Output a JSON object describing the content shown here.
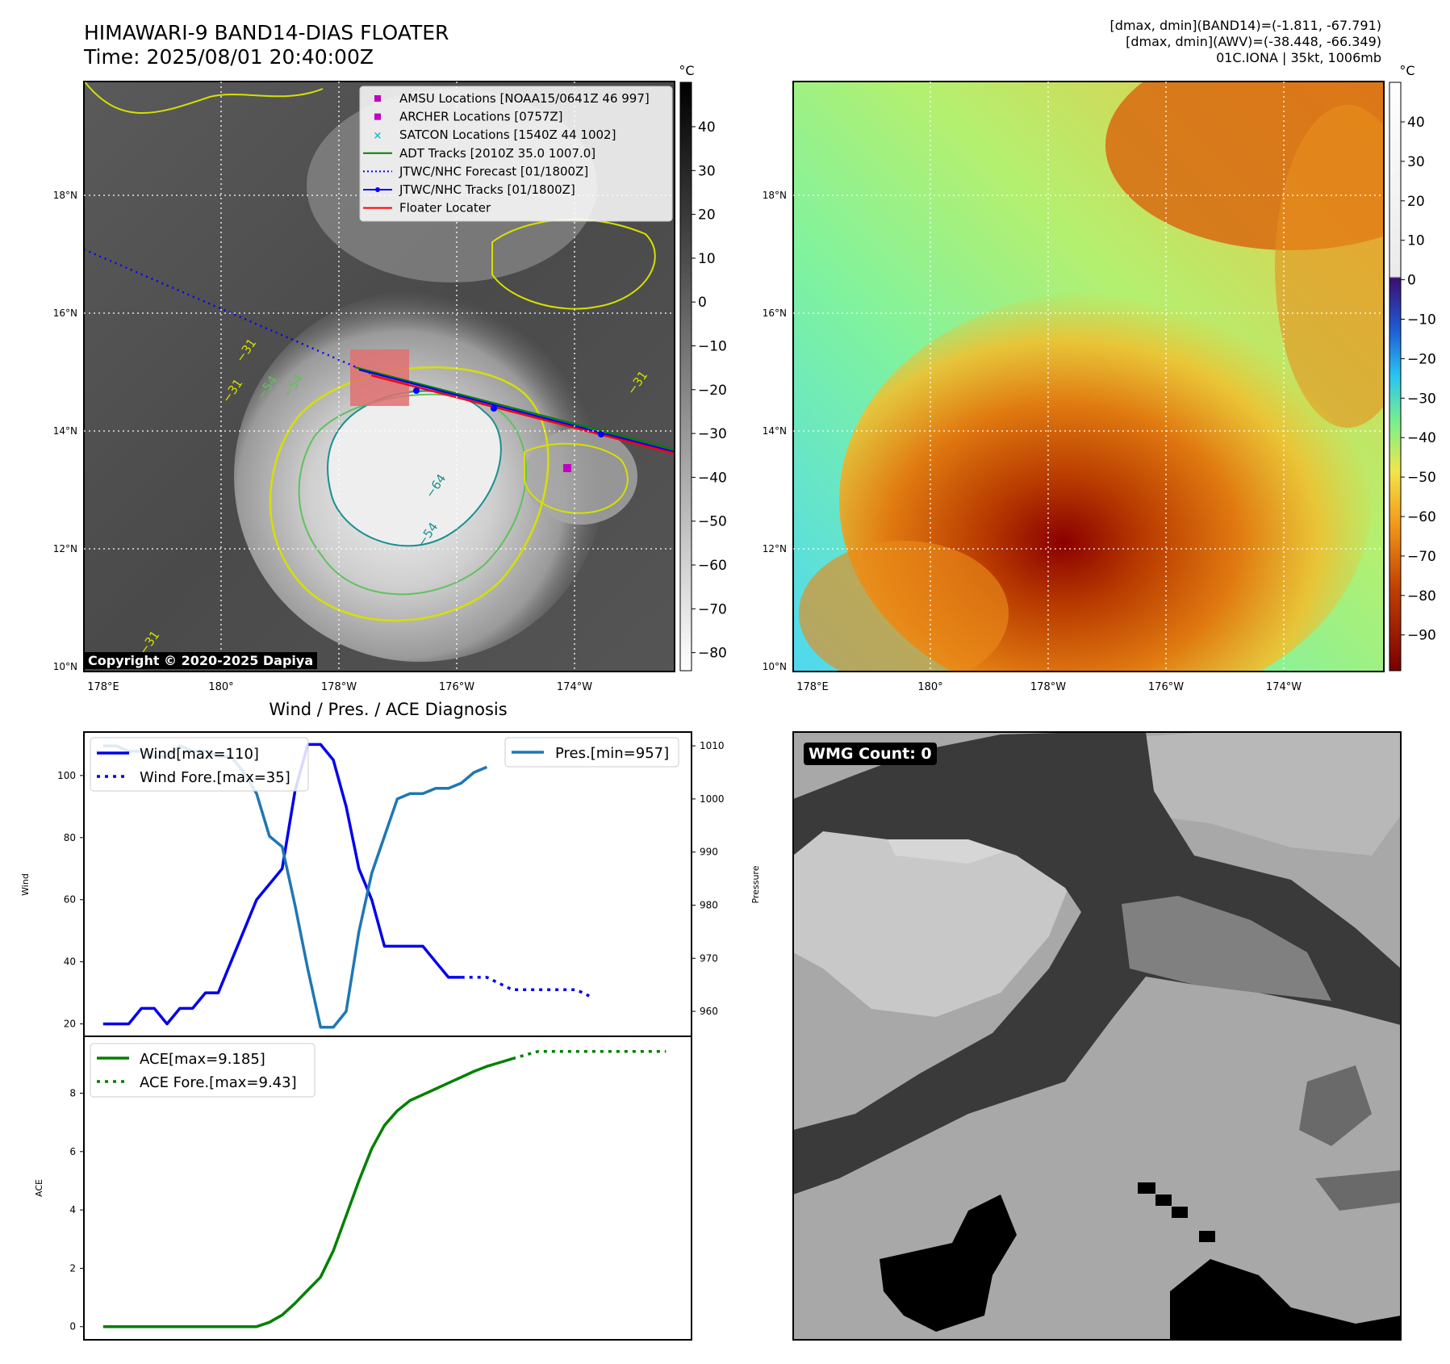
{
  "header": {
    "title_line1": "HIMAWARI-9 BAND14-DIAS FLOATER",
    "title_line2": "Time: 2025/08/01 20:40:00Z",
    "info_line1": "[dmax, dmin](BAND14)=(-1.811, -67.791)",
    "info_line2": "[dmax, dmin](AWV)=(-38.448, -66.349)",
    "info_line3": "01C.IONA | 35kt, 1006mb"
  },
  "map_axes": {
    "lat_ticks": [
      "18°N",
      "16°N",
      "14°N",
      "12°N",
      "10°N"
    ],
    "lon_ticks": [
      "178°E",
      "180°",
      "178°W",
      "176°W",
      "174°W"
    ]
  },
  "left_map": {
    "colorbar_unit": "°C",
    "colorbar_ticks": [
      "40",
      "30",
      "20",
      "10",
      "0",
      "−10",
      "−20",
      "−30",
      "−40",
      "−50",
      "−60",
      "−70",
      "−80"
    ],
    "contour_labels": [
      "−31",
      "−54",
      "−31",
      "−64",
      "−54",
      "−31",
      "−31",
      "−54"
    ],
    "copyright": "Copyright © 2020-2025 Dapiya",
    "legend": [
      {
        "label": "AMSU Locations [NOAA15/0641Z 46 997]",
        "kind": "square",
        "color": "#c000c0"
      },
      {
        "label": "ARCHER Locations [0757Z]",
        "kind": "square",
        "color": "#c000c0"
      },
      {
        "label": "SATCON Locations [1540Z 44 1002]",
        "kind": "x",
        "color": "#17becf"
      },
      {
        "label": "ADT Tracks [2010Z 35.0 1007.0]",
        "kind": "line",
        "color": "#008000"
      },
      {
        "label": "JTWC/NHC Forecast [01/1800Z]",
        "kind": "dotted",
        "color": "#0000ff"
      },
      {
        "label": "JTWC/NHC Tracks [01/1800Z]",
        "kind": "line-dot",
        "color": "#0000ff"
      },
      {
        "label": "Floater Locater",
        "kind": "line",
        "color": "#ff0000"
      }
    ]
  },
  "right_map": {
    "colorbar_unit": "°C",
    "colorbar_ticks": [
      "40",
      "30",
      "20",
      "10",
      "0",
      "−10",
      "−20",
      "−30",
      "−40",
      "−50",
      "−60",
      "−70",
      "−80",
      "−90"
    ]
  },
  "diagnosis_title": "Wind / Pres. / ACE Diagnosis",
  "wmg_label": "WMG Count: 0",
  "chart_data": [
    {
      "type": "line",
      "ylabel": "Wind",
      "ylabel_right": "Pressure",
      "ylim": [
        16,
        114
      ],
      "ylim_right": [
        955.3,
        1012.6
      ],
      "yticks": [
        20,
        40,
        60,
        80,
        100
      ],
      "yticks_right": [
        960,
        970,
        980,
        990,
        1000,
        1010
      ],
      "legend": {
        "wind": "Wind[max=110]",
        "wind_fore": "Wind Fore.[max=35]",
        "pres": "Pres.[min=957]"
      },
      "series": [
        {
          "name": "Wind[max=110]",
          "axis": "left",
          "style": "solid",
          "color": "#0000ee",
          "values": [
            20,
            20,
            20,
            25,
            25,
            20,
            25,
            25,
            30,
            30,
            40,
            50,
            60,
            65,
            70,
            95,
            110,
            110,
            105,
            90,
            70,
            60,
            45,
            45,
            45,
            45,
            40,
            35,
            35
          ]
        },
        {
          "name": "Wind Fore.[max=35]",
          "axis": "left",
          "style": "dotted",
          "color": "#0000ee",
          "x_start": 28,
          "values": [
            35,
            35,
            35,
            33,
            31,
            31,
            31,
            31,
            31,
            31,
            29
          ]
        },
        {
          "name": "Pres.[min=957]",
          "axis": "right",
          "style": "solid",
          "color": "#1f77b4",
          "values": [
            1010,
            1010,
            1009,
            1009,
            1008,
            1008,
            1010,
            1009,
            1009,
            1008,
            1008,
            1005,
            1001,
            993,
            991,
            980,
            968,
            957,
            957,
            960,
            975,
            986,
            993,
            1000,
            1001,
            1001,
            1002,
            1002,
            1003,
            1005,
            1006
          ]
        }
      ]
    },
    {
      "type": "line",
      "ylabel": "ACE",
      "ylim": [
        -0.45,
        9.95
      ],
      "yticks": [
        0,
        2,
        4,
        6,
        8
      ],
      "legend": {
        "ace": "ACE[max=9.185]",
        "ace_fore": "ACE Fore.[max=9.43]"
      },
      "series": [
        {
          "name": "ACE[max=9.185]",
          "style": "solid",
          "color": "#008000",
          "values": [
            0,
            0,
            0,
            0,
            0,
            0,
            0,
            0,
            0,
            0,
            0,
            0,
            0,
            0.15,
            0.4,
            0.8,
            1.25,
            1.7,
            2.6,
            3.8,
            5.0,
            6.1,
            6.9,
            7.4,
            7.75,
            7.95,
            8.15,
            8.35,
            8.55,
            8.75,
            8.92,
            9.05,
            9.185
          ]
        },
        {
          "name": "ACE Fore.[max=9.43]",
          "style": "dotted",
          "color": "#008000",
          "x_start": 32,
          "values": [
            9.185,
            9.31,
            9.43,
            9.43,
            9.43,
            9.43,
            9.43,
            9.43,
            9.43,
            9.43,
            9.43,
            9.43,
            9.43
          ]
        }
      ]
    }
  ]
}
